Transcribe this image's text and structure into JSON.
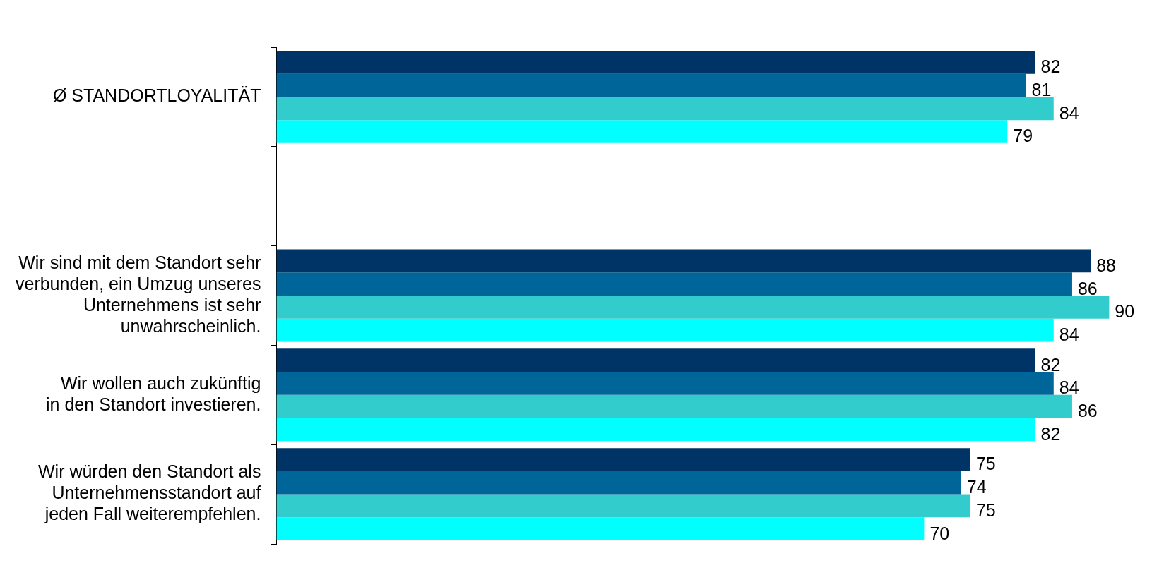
{
  "chart_data": {
    "type": "bar",
    "orientation": "horizontal",
    "data_labels": true,
    "tick_labels": "y",
    "grid": false,
    "legend": false,
    "categories": [
      "Ø STANDORTLOYALITÄT",
      null,
      "Wir sind mit dem Standort sehr\nverbunden, ein Umzug unseres\nUnternehmens ist sehr\nunwahrscheinlich.",
      "Wir wollen auch zukünftig\nin den Standort investieren.",
      "Wir würden den Standort als\nUnternehmensstandort auf\njeden Fall weiterempfehlen."
    ],
    "series": [
      {
        "color": "#003366",
        "values": [
          82,
          null,
          88,
          82,
          75
        ]
      },
      {
        "color": "#006699",
        "values": [
          81,
          null,
          86,
          84,
          74
        ]
      },
      {
        "color": "#33cccc",
        "values": [
          84,
          null,
          90,
          86,
          75
        ]
      },
      {
        "color": "#00ffff",
        "values": [
          79,
          null,
          84,
          82,
          70
        ]
      }
    ]
  }
}
